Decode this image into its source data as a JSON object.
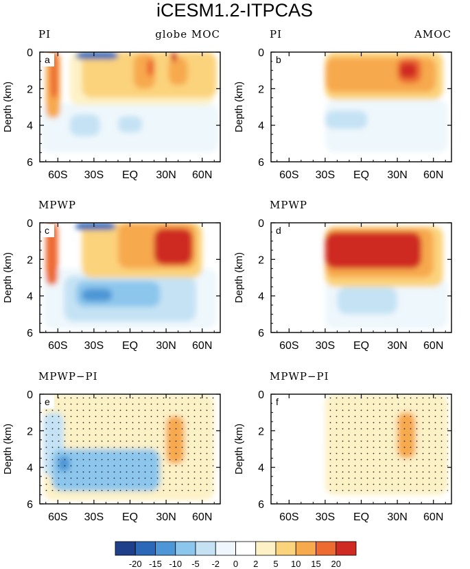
{
  "figure": {
    "title": "iCESM1.2-ITPCAS"
  },
  "chart_data": {
    "type": "heatmap",
    "title": "iCESM1.2-ITPCAS",
    "xlabel": "",
    "ylabel": "Depth (km)",
    "xlim": [
      -75,
      75
    ],
    "ylim": [
      6,
      0
    ],
    "x_ticks": [
      {
        "value": -60,
        "label": "60S"
      },
      {
        "value": -30,
        "label": "30S"
      },
      {
        "value": 0,
        "label": "EQ"
      },
      {
        "value": 30,
        "label": "30N"
      },
      {
        "value": 60,
        "label": "60N"
      }
    ],
    "y_ticks": [
      {
        "value": 0,
        "label": "0"
      },
      {
        "value": 2,
        "label": "2"
      },
      {
        "value": 4,
        "label": "4"
      },
      {
        "value": 6,
        "label": "6"
      }
    ],
    "colorbar": {
      "labels": [
        "-20",
        "-15",
        "-10",
        "-5",
        "-2",
        "0",
        "2",
        "5",
        "10",
        "15",
        "20"
      ],
      "colors": [
        "#1f3f8a",
        "#2b68b6",
        "#4d97d6",
        "#8cc6ec",
        "#c4e2f4",
        "#eef7fc",
        "#ffffff",
        "#fdf1c6",
        "#fbd37c",
        "#f7a94d",
        "#ed6a31",
        "#cf2b22"
      ]
    },
    "panels": [
      {
        "id": "a",
        "left_title": "PI",
        "right_title": "globe MOC",
        "stippled": false,
        "blobs": [
          {
            "x": [
              32,
              48
            ],
            "d": [
              0.3,
              1.8
            ],
            "v": 14
          },
          {
            "x": [
              34,
              39
            ],
            "d": [
              0,
              0.5
            ],
            "v": 20
          },
          {
            "x": [
              3,
              21
            ],
            "d": [
              0.1,
              2.0
            ],
            "v": 12
          },
          {
            "x": [
              14,
              20
            ],
            "d": [
              0.4,
              1.3
            ],
            "v": 18
          },
          {
            "x": [
              -70,
              -58
            ],
            "d": [
              0,
              3.6
            ],
            "v": 12
          },
          {
            "x": [
              -66,
              -60
            ],
            "d": [
              0,
              2.5
            ],
            "v": 18
          },
          {
            "x": [
              -45,
              -10
            ],
            "d": [
              0,
              0.4
            ],
            "v": -18
          },
          {
            "x": [
              -40,
              72
            ],
            "d": [
              0,
              2.5
            ],
            "v": 7
          },
          {
            "x": [
              -50,
              70
            ],
            "d": [
              0,
              2.9
            ],
            "v": 2.5
          },
          {
            "x": [
              -50,
              -25
            ],
            "d": [
              3.4,
              4.6
            ],
            "v": -4
          },
          {
            "x": [
              -10,
              10
            ],
            "d": [
              3.5,
              4.4
            ],
            "v": -4
          },
          {
            "x": [
              -74,
              74
            ],
            "d": [
              2.8,
              5.5
            ],
            "v": -1.5
          }
        ]
      },
      {
        "id": "b",
        "left_title": "PI",
        "right_title": "AMOC",
        "stippled": false,
        "blobs": [
          {
            "x": [
              30,
              50
            ],
            "d": [
              0.3,
              1.7
            ],
            "v": 16
          },
          {
            "x": [
              32,
              46
            ],
            "d": [
              0.6,
              1.4
            ],
            "v": 20
          },
          {
            "x": [
              -30,
              62
            ],
            "d": [
              0.3,
              2.2
            ],
            "v": 12
          },
          {
            "x": [
              -30,
              68
            ],
            "d": [
              0,
              2.6
            ],
            "v": 5
          },
          {
            "x": [
              -30,
              5
            ],
            "d": [
              3.2,
              4.2
            ],
            "v": -4
          },
          {
            "x": [
              -30,
              72
            ],
            "d": [
              2.6,
              5.5
            ],
            "v": -1.5
          }
        ]
      },
      {
        "id": "c",
        "left_title": "MPWP",
        "right_title": "",
        "stippled": false,
        "blobs": [
          {
            "x": [
              20,
              52
            ],
            "d": [
              0.3,
              2.3
            ],
            "v": 20
          },
          {
            "x": [
              -10,
              55
            ],
            "d": [
              0,
              2.5
            ],
            "v": 13
          },
          {
            "x": [
              -40,
              60
            ],
            "d": [
              0,
              3.0
            ],
            "v": 8
          },
          {
            "x": [
              -70,
              -60
            ],
            "d": [
              0,
              3.4
            ],
            "v": 18
          },
          {
            "x": [
              -45,
              -12
            ],
            "d": [
              0,
              0.4
            ],
            "v": -18
          },
          {
            "x": [
              -45,
              25
            ],
            "d": [
              3.2,
              4.6
            ],
            "v": -8
          },
          {
            "x": [
              -40,
              -15
            ],
            "d": [
              3.6,
              4.3
            ],
            "v": -13
          },
          {
            "x": [
              -55,
              55
            ],
            "d": [
              2.9,
              5.4
            ],
            "v": -3
          },
          {
            "x": [
              -72,
              72
            ],
            "d": [
              2.5,
              5.8
            ],
            "v": -1
          }
        ]
      },
      {
        "id": "d",
        "left_title": "MPWP",
        "right_title": "",
        "stippled": false,
        "blobs": [
          {
            "x": [
              -30,
              50
            ],
            "d": [
              0.5,
              2.5
            ],
            "v": 20
          },
          {
            "x": [
              -30,
              60
            ],
            "d": [
              0.3,
              3.0
            ],
            "v": 13
          },
          {
            "x": [
              -30,
              68
            ],
            "d": [
              0.2,
              3.5
            ],
            "v": 6
          },
          {
            "x": [
              -20,
              30
            ],
            "d": [
              3.5,
              5.0
            ],
            "v": -3
          },
          {
            "x": [
              -30,
              72
            ],
            "d": [
              3.0,
              5.8
            ],
            "v": -1.2
          }
        ]
      },
      {
        "id": "e",
        "left_title": "MPWP−PI",
        "right_title": "",
        "stippled": true,
        "blobs": [
          {
            "x": [
              30,
              45
            ],
            "d": [
              1.2,
              3.8
            ],
            "v": 10
          },
          {
            "x": [
              35,
              42
            ],
            "d": [
              1.8,
              3.2
            ],
            "v": 14
          },
          {
            "x": [
              -40,
              60
            ],
            "d": [
              0,
              3.0
            ],
            "v": 4
          },
          {
            "x": [
              -65,
              25
            ],
            "d": [
              3.0,
              5.3
            ],
            "v": -7
          },
          {
            "x": [
              -60,
              -50
            ],
            "d": [
              3.4,
              4.2
            ],
            "v": -12
          },
          {
            "x": [
              -72,
              -55
            ],
            "d": [
              1.0,
              4.5
            ],
            "v": -3
          },
          {
            "x": [
              -72,
              70
            ],
            "d": [
              0,
              5.8
            ],
            "v": 1
          }
        ]
      },
      {
        "id": "f",
        "left_title": "MPWP−PI",
        "right_title": "",
        "stippled": true,
        "blobs": [
          {
            "x": [
              30,
              45
            ],
            "d": [
              1.0,
              3.5
            ],
            "v": 10
          },
          {
            "x": [
              36,
              42
            ],
            "d": [
              1.8,
              3.0
            ],
            "v": 14
          },
          {
            "x": [
              -30,
              55
            ],
            "d": [
              0,
              3.5
            ],
            "v": 4
          },
          {
            "x": [
              -30,
              72
            ],
            "d": [
              0,
              5.5
            ],
            "v": 1.5
          }
        ]
      }
    ]
  }
}
